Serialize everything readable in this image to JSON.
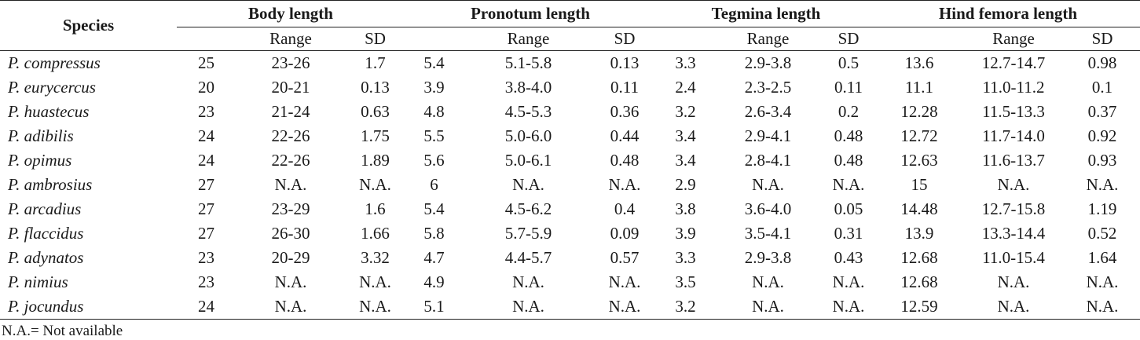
{
  "table": {
    "species_header": "Species",
    "groups": [
      {
        "title": "Body length",
        "subheaders": [
          "Range",
          "SD"
        ]
      },
      {
        "title": "Pronotum length",
        "subheaders": [
          "Range",
          "SD"
        ]
      },
      {
        "title": "Tegmina length",
        "subheaders": [
          "Range",
          "SD"
        ]
      },
      {
        "title": "Hind femora length",
        "subheaders": [
          "Range",
          "SD"
        ]
      }
    ],
    "rows": [
      [
        "P. compressus",
        "25",
        "23-26",
        "1.7",
        "5.4",
        "5.1-5.8",
        "0.13",
        "3.3",
        "2.9-3.8",
        "0.5",
        "13.6",
        "12.7-14.7",
        "0.98"
      ],
      [
        "P. eurycercus",
        "20",
        "20-21",
        "0.13",
        "3.9",
        "3.8-4.0",
        "0.11",
        "2.4",
        "2.3-2.5",
        "0.11",
        "11.1",
        "11.0-11.2",
        "0.1"
      ],
      [
        "P. huastecus",
        "23",
        "21-24",
        "0.63",
        "4.8",
        "4.5-5.3",
        "0.36",
        "3.2",
        "2.6-3.4",
        "0.2",
        "12.28",
        "11.5-13.3",
        "0.37"
      ],
      [
        "P. adibilis",
        "24",
        "22-26",
        "1.75",
        "5.5",
        "5.0-6.0",
        "0.44",
        "3.4",
        "2.9-4.1",
        "0.48",
        "12.72",
        "11.7-14.0",
        "0.92"
      ],
      [
        "P. opimus",
        "24",
        "22-26",
        "1.89",
        "5.6",
        "5.0-6.1",
        "0.48",
        "3.4",
        "2.8-4.1",
        "0.48",
        "12.63",
        "11.6-13.7",
        "0.93"
      ],
      [
        "P. ambrosius",
        "27",
        "N.A.",
        "N.A.",
        "6",
        "N.A.",
        "N.A.",
        "2.9",
        "N.A.",
        "N.A.",
        "15",
        "N.A.",
        "N.A."
      ],
      [
        "P. arcadius",
        "27",
        "23-29",
        "1.6",
        "5.4",
        "4.5-6.2",
        "0.4",
        "3.8",
        "3.6-4.0",
        "0.05",
        "14.48",
        "12.7-15.8",
        "1.19"
      ],
      [
        "P. flaccidus",
        "27",
        "26-30",
        "1.66",
        "5.8",
        "5.7-5.9",
        "0.09",
        "3.9",
        "3.5-4.1",
        "0.31",
        "13.9",
        "13.3-14.4",
        "0.52"
      ],
      [
        "P. adynatos",
        "23",
        "20-29",
        "3.32",
        "4.7",
        "4.4-5.7",
        "0.57",
        "3.3",
        "2.9-3.8",
        "0.43",
        "12.68",
        "11.0-15.4",
        "1.64"
      ],
      [
        "P. nimius",
        "23",
        "N.A.",
        "N.A.",
        "4.9",
        "N.A.",
        "N.A.",
        "3.5",
        "N.A.",
        "N.A.",
        "12.68",
        "N.A.",
        "N.A."
      ],
      [
        "P. jocundus",
        "24",
        "N.A.",
        "N.A.",
        "5.1",
        "N.A.",
        "N.A.",
        "3.2",
        "N.A.",
        "N.A.",
        "12.59",
        "N.A.",
        "N.A."
      ]
    ],
    "footnote": "N.A.= Not available"
  }
}
